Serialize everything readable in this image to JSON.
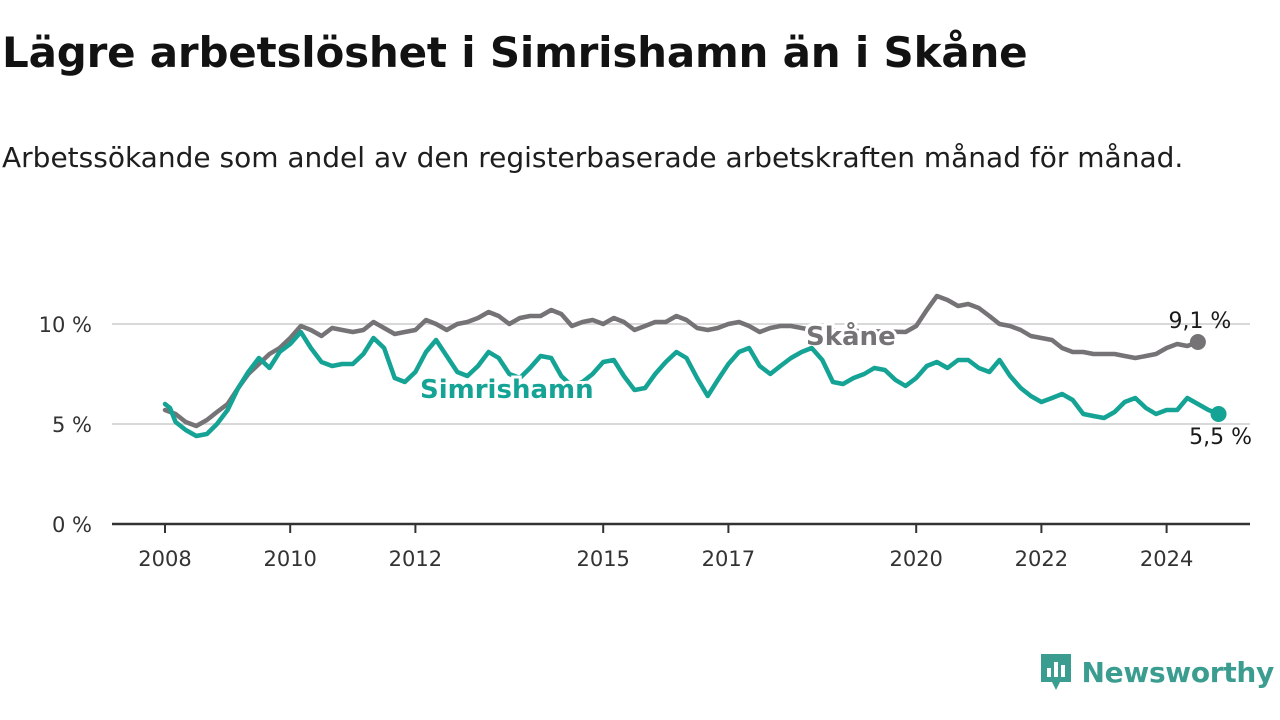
{
  "title": "Lägre arbetslöshet i Simrishamn än i Skåne",
  "subtitle": "Arbetssökande som andel av den registerbaserade arbetskraften månad för månad.",
  "brand": {
    "name": "Newsworthy",
    "icon": "newsworthy-logo-icon"
  },
  "colors": {
    "skane": "#767377",
    "simrishamn": "#14a394",
    "grid": "#d9d9d9",
    "axis": "#333333"
  },
  "chart_data": {
    "type": "line",
    "y_ticks": [
      {
        "value": 0,
        "label": "0 %"
      },
      {
        "value": 5,
        "label": "5 %"
      },
      {
        "value": 10,
        "label": "10 %"
      }
    ],
    "x_ticks": [
      {
        "value": 2008,
        "label": "2008"
      },
      {
        "value": 2010,
        "label": "2010"
      },
      {
        "value": 2012,
        "label": "2012"
      },
      {
        "value": 2015,
        "label": "2015"
      },
      {
        "value": 2017,
        "label": "2017"
      },
      {
        "value": 2020,
        "label": "2020"
      },
      {
        "value": 2022,
        "label": "2022"
      },
      {
        "value": 2024,
        "label": "2024"
      }
    ],
    "ylim": [
      0,
      10
    ],
    "grid": true,
    "series": [
      {
        "name": "Skåne",
        "end_label": "9,1 %",
        "points": [
          [
            2008.0,
            5.7
          ],
          [
            2008.17,
            5.5
          ],
          [
            2008.33,
            5.1
          ],
          [
            2008.5,
            4.9
          ],
          [
            2008.67,
            5.2
          ],
          [
            2008.83,
            5.6
          ],
          [
            2009.0,
            6.0
          ],
          [
            2009.17,
            6.8
          ],
          [
            2009.33,
            7.5
          ],
          [
            2009.5,
            8.0
          ],
          [
            2009.67,
            8.5
          ],
          [
            2009.83,
            8.8
          ],
          [
            2010.0,
            9.3
          ],
          [
            2010.17,
            9.9
          ],
          [
            2010.33,
            9.7
          ],
          [
            2010.5,
            9.4
          ],
          [
            2010.67,
            9.8
          ],
          [
            2010.83,
            9.7
          ],
          [
            2011.0,
            9.6
          ],
          [
            2011.17,
            9.7
          ],
          [
            2011.33,
            10.1
          ],
          [
            2011.5,
            9.8
          ],
          [
            2011.67,
            9.5
          ],
          [
            2011.83,
            9.6
          ],
          [
            2012.0,
            9.7
          ],
          [
            2012.17,
            10.2
          ],
          [
            2012.33,
            10.0
          ],
          [
            2012.5,
            9.7
          ],
          [
            2012.67,
            10.0
          ],
          [
            2012.83,
            10.1
          ],
          [
            2013.0,
            10.3
          ],
          [
            2013.17,
            10.6
          ],
          [
            2013.33,
            10.4
          ],
          [
            2013.5,
            10.0
          ],
          [
            2013.67,
            10.3
          ],
          [
            2013.83,
            10.4
          ],
          [
            2014.0,
            10.4
          ],
          [
            2014.17,
            10.7
          ],
          [
            2014.33,
            10.5
          ],
          [
            2014.5,
            9.9
          ],
          [
            2014.67,
            10.1
          ],
          [
            2014.83,
            10.2
          ],
          [
            2015.0,
            10.0
          ],
          [
            2015.17,
            10.3
          ],
          [
            2015.33,
            10.1
          ],
          [
            2015.5,
            9.7
          ],
          [
            2015.67,
            9.9
          ],
          [
            2015.83,
            10.1
          ],
          [
            2016.0,
            10.1
          ],
          [
            2016.17,
            10.4
          ],
          [
            2016.33,
            10.2
          ],
          [
            2016.5,
            9.8
          ],
          [
            2016.67,
            9.7
          ],
          [
            2016.83,
            9.8
          ],
          [
            2017.0,
            10.0
          ],
          [
            2017.17,
            10.1
          ],
          [
            2017.33,
            9.9
          ],
          [
            2017.5,
            9.6
          ],
          [
            2017.67,
            9.8
          ],
          [
            2017.83,
            9.9
          ],
          [
            2018.0,
            9.9
          ],
          [
            2018.17,
            9.8
          ],
          [
            2018.33,
            9.7
          ],
          [
            2019.83,
            9.6
          ],
          [
            2020.0,
            9.9
          ],
          [
            2020.17,
            10.7
          ],
          [
            2020.33,
            11.4
          ],
          [
            2020.5,
            11.2
          ],
          [
            2020.67,
            10.9
          ],
          [
            2020.83,
            11.0
          ],
          [
            2021.0,
            10.8
          ],
          [
            2021.17,
            10.4
          ],
          [
            2021.33,
            10.0
          ],
          [
            2021.5,
            9.9
          ],
          [
            2021.67,
            9.7
          ],
          [
            2021.83,
            9.4
          ],
          [
            2022.0,
            9.3
          ],
          [
            2022.17,
            9.2
          ],
          [
            2022.33,
            8.8
          ],
          [
            2022.5,
            8.6
          ],
          [
            2022.67,
            8.6
          ],
          [
            2022.83,
            8.5
          ],
          [
            2023.0,
            8.5
          ],
          [
            2023.17,
            8.5
          ],
          [
            2023.33,
            8.4
          ],
          [
            2023.5,
            8.3
          ],
          [
            2023.67,
            8.4
          ],
          [
            2023.83,
            8.5
          ],
          [
            2024.0,
            8.8
          ],
          [
            2024.17,
            9.0
          ],
          [
            2024.33,
            8.9
          ],
          [
            2024.5,
            9.1
          ]
        ]
      },
      {
        "name": "Simrishamn",
        "end_label": "5,5 %",
        "points": [
          [
            2008.0,
            6.0
          ],
          [
            2008.08,
            5.8
          ],
          [
            2008.17,
            5.1
          ],
          [
            2008.33,
            4.7
          ],
          [
            2008.5,
            4.4
          ],
          [
            2008.67,
            4.5
          ],
          [
            2008.83,
            5.0
          ],
          [
            2009.0,
            5.7
          ],
          [
            2009.17,
            6.8
          ],
          [
            2009.33,
            7.6
          ],
          [
            2009.5,
            8.3
          ],
          [
            2009.67,
            7.8
          ],
          [
            2009.83,
            8.6
          ],
          [
            2010.0,
            9.0
          ],
          [
            2010.17,
            9.6
          ],
          [
            2010.33,
            8.8
          ],
          [
            2010.5,
            8.1
          ],
          [
            2010.67,
            7.9
          ],
          [
            2010.83,
            8.0
          ],
          [
            2011.0,
            8.0
          ],
          [
            2011.17,
            8.5
          ],
          [
            2011.33,
            9.3
          ],
          [
            2011.5,
            8.8
          ],
          [
            2011.67,
            7.3
          ],
          [
            2011.83,
            7.1
          ],
          [
            2012.0,
            7.6
          ],
          [
            2012.17,
            8.6
          ],
          [
            2012.33,
            9.2
          ],
          [
            2012.5,
            8.4
          ],
          [
            2012.67,
            7.6
          ],
          [
            2012.83,
            7.4
          ],
          [
            2013.0,
            7.9
          ],
          [
            2013.17,
            8.6
          ],
          [
            2013.33,
            8.3
          ],
          [
            2013.5,
            7.5
          ],
          [
            2013.67,
            7.3
          ],
          [
            2013.83,
            7.8
          ],
          [
            2014.0,
            8.4
          ],
          [
            2014.17,
            8.3
          ],
          [
            2014.33,
            7.4
          ],
          [
            2014.5,
            6.9
          ],
          [
            2014.67,
            7.1
          ],
          [
            2014.83,
            7.5
          ],
          [
            2015.0,
            8.1
          ],
          [
            2015.17,
            8.2
          ],
          [
            2015.33,
            7.4
          ],
          [
            2015.5,
            6.7
          ],
          [
            2015.67,
            6.8
          ],
          [
            2015.83,
            7.5
          ],
          [
            2016.0,
            8.1
          ],
          [
            2016.17,
            8.6
          ],
          [
            2016.33,
            8.3
          ],
          [
            2016.5,
            7.3
          ],
          [
            2016.67,
            6.4
          ],
          [
            2016.83,
            7.2
          ],
          [
            2017.0,
            8.0
          ],
          [
            2017.17,
            8.6
          ],
          [
            2017.33,
            8.8
          ],
          [
            2017.5,
            7.9
          ],
          [
            2017.67,
            7.5
          ],
          [
            2017.83,
            7.9
          ],
          [
            2018.0,
            8.3
          ],
          [
            2018.17,
            8.6
          ],
          [
            2018.33,
            8.8
          ],
          [
            2018.5,
            8.2
          ],
          [
            2018.67,
            7.1
          ],
          [
            2018.83,
            7.0
          ],
          [
            2019.0,
            7.3
          ],
          [
            2019.17,
            7.5
          ],
          [
            2019.33,
            7.8
          ],
          [
            2019.5,
            7.7
          ],
          [
            2019.67,
            7.2
          ],
          [
            2019.83,
            6.9
          ],
          [
            2020.0,
            7.3
          ],
          [
            2020.17,
            7.9
          ],
          [
            2020.33,
            8.1
          ],
          [
            2020.5,
            7.8
          ],
          [
            2020.67,
            8.2
          ],
          [
            2020.83,
            8.2
          ],
          [
            2021.0,
            7.8
          ],
          [
            2021.17,
            7.6
          ],
          [
            2021.33,
            8.2
          ],
          [
            2021.5,
            7.4
          ],
          [
            2021.67,
            6.8
          ],
          [
            2021.83,
            6.4
          ],
          [
            2022.0,
            6.1
          ],
          [
            2022.17,
            6.3
          ],
          [
            2022.33,
            6.5
          ],
          [
            2022.5,
            6.2
          ],
          [
            2022.67,
            5.5
          ],
          [
            2022.83,
            5.4
          ],
          [
            2023.0,
            5.3
          ],
          [
            2023.17,
            5.6
          ],
          [
            2023.33,
            6.1
          ],
          [
            2023.5,
            6.3
          ],
          [
            2023.67,
            5.8
          ],
          [
            2023.83,
            5.5
          ],
          [
            2024.0,
            5.7
          ],
          [
            2024.17,
            5.7
          ],
          [
            2024.33,
            6.3
          ],
          [
            2024.5,
            6.0
          ],
          [
            2024.67,
            5.7
          ],
          [
            2024.83,
            5.5
          ]
        ]
      }
    ]
  }
}
